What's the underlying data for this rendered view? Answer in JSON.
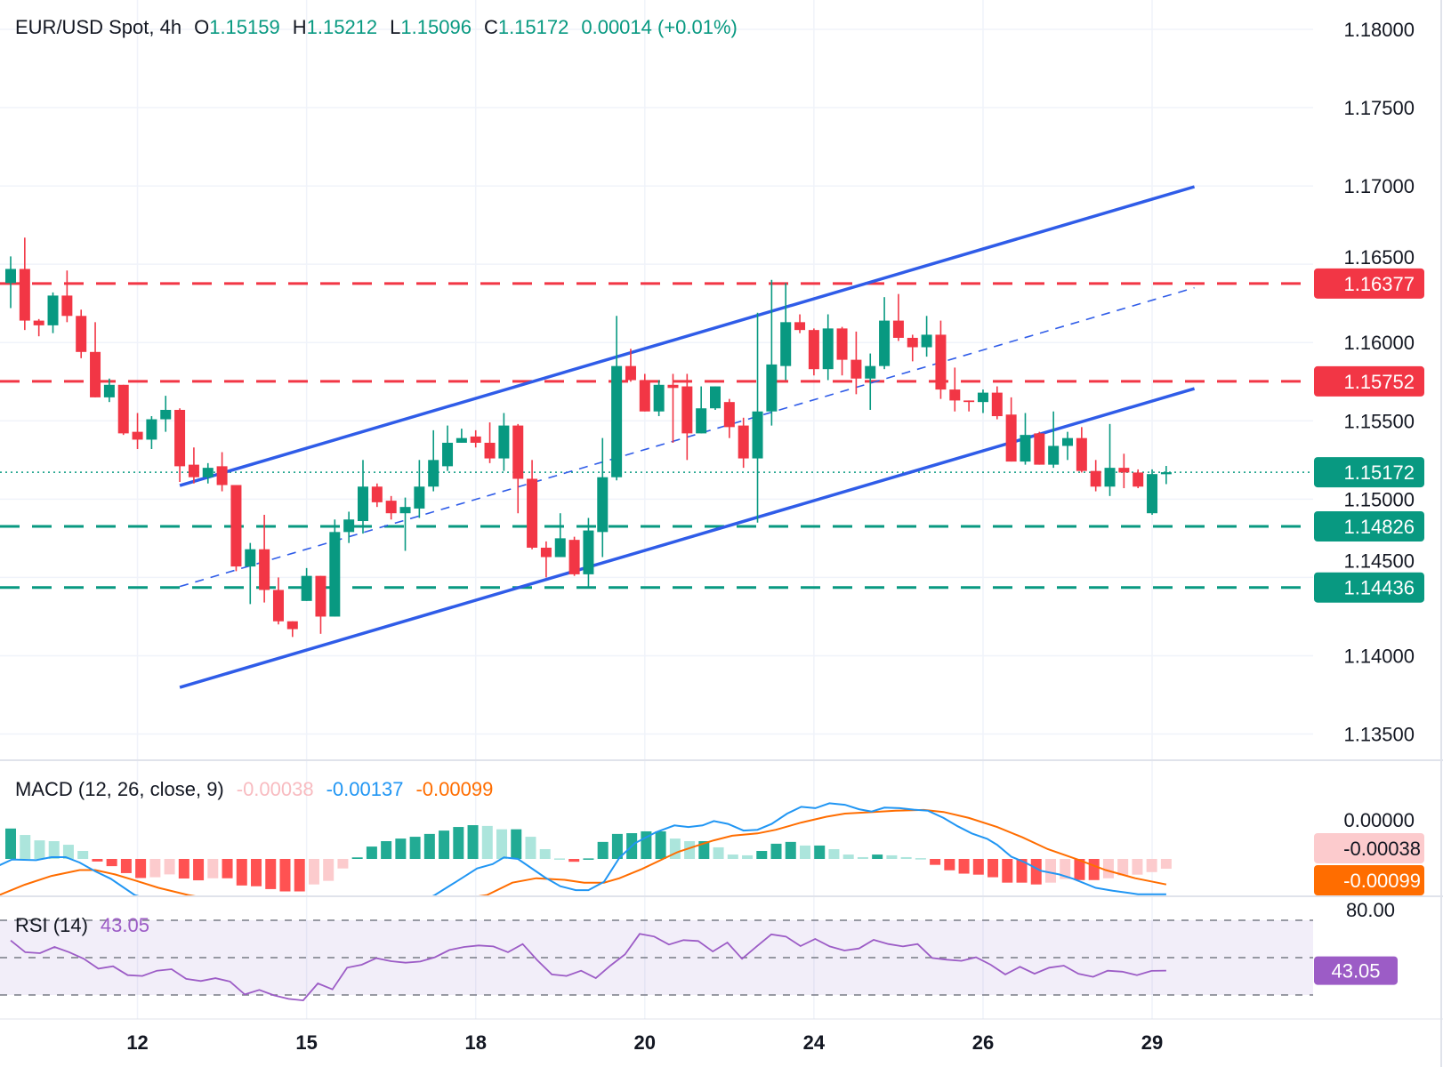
{
  "header": {
    "symbol": "EUR/USD Spot, 4h",
    "open_label": "O",
    "open": "1.15159",
    "high_label": "H",
    "high": "1.15212",
    "low_label": "L",
    "low": "1.15096",
    "close_label": "C",
    "close": "1.15172",
    "change": "0.00014 (+0.01%)"
  },
  "colors": {
    "up": "#089981",
    "down": "#f23645",
    "trendline": "#2f5ce8",
    "macd": "#2196f3",
    "signal": "#ff6d00",
    "hist_up_strong": "#22ab94",
    "hist_up_weak": "#ace5dc",
    "hist_down_strong": "#ff5252",
    "hist_down_weak": "#fccbcd",
    "rsi": "#9c5cc6",
    "rsi_band": "#7e57c2"
  },
  "chart_data": [
    {
      "type": "candlestick",
      "title": "EUR/USD Spot, 4h",
      "ylim": [
        1.1325,
        1.1825
      ],
      "y_ticks": [
        "1.18000",
        "1.17500",
        "1.17000",
        "1.16500",
        "1.16000",
        "1.15500",
        "1.15000",
        "1.14500",
        "1.14000",
        "1.13500"
      ],
      "x_ticks": [
        {
          "label": "12",
          "bar": 9
        },
        {
          "label": "15",
          "bar": 21
        },
        {
          "label": "18",
          "bar": 33
        },
        {
          "label": "20",
          "bar": 45
        },
        {
          "label": "24",
          "bar": 57
        },
        {
          "label": "26",
          "bar": 69
        },
        {
          "label": "29",
          "bar": 81
        }
      ],
      "grid": true,
      "ohlc": [
        [
          1.1638,
          1.1655,
          1.1622,
          1.1647
        ],
        [
          1.1647,
          1.1667,
          1.1608,
          1.1614
        ],
        [
          1.1614,
          1.1615,
          1.1604,
          1.1611
        ],
        [
          1.1611,
          1.1632,
          1.1606,
          1.163
        ],
        [
          1.163,
          1.1646,
          1.1613,
          1.1617
        ],
        [
          1.1617,
          1.1621,
          1.159,
          1.1594
        ],
        [
          1.1594,
          1.1613,
          1.1565,
          1.1565
        ],
        [
          1.1565,
          1.1577,
          1.1562,
          1.1573
        ],
        [
          1.1573,
          1.1573,
          1.1541,
          1.1542
        ],
        [
          1.1543,
          1.1555,
          1.1532,
          1.1538
        ],
        [
          1.1538,
          1.1553,
          1.1532,
          1.1551
        ],
        [
          1.1551,
          1.1566,
          1.1543,
          1.1557
        ],
        [
          1.1557,
          1.1558,
          1.1511,
          1.1521
        ],
        [
          1.1522,
          1.1533,
          1.151,
          1.1514
        ],
        [
          1.1514,
          1.1523,
          1.151,
          1.152
        ],
        [
          1.1521,
          1.153,
          1.1505,
          1.1509
        ],
        [
          1.1509,
          1.1509,
          1.1454,
          1.1457
        ],
        [
          1.1457,
          1.1472,
          1.1433,
          1.1468
        ],
        [
          1.1468,
          1.149,
          1.1434,
          1.1442
        ],
        [
          1.1442,
          1.145,
          1.142,
          1.1422
        ],
        [
          1.1422,
          1.1422,
          1.1412,
          1.1417
        ],
        [
          1.1435,
          1.1456,
          1.1435,
          1.1451
        ],
        [
          1.1451,
          1.1451,
          1.1414,
          1.1425
        ],
        [
          1.1425,
          1.1487,
          1.1425,
          1.1479
        ],
        [
          1.1479,
          1.1492,
          1.1472,
          1.1487
        ],
        [
          1.1486,
          1.1525,
          1.1478,
          1.1508
        ],
        [
          1.1508,
          1.151,
          1.1495,
          1.1498
        ],
        [
          1.1499,
          1.1502,
          1.1487,
          1.1491
        ],
        [
          1.1491,
          1.1501,
          1.1467,
          1.1495
        ],
        [
          1.1494,
          1.1525,
          1.1488,
          1.1508
        ],
        [
          1.1508,
          1.1544,
          1.1505,
          1.1525
        ],
        [
          1.1521,
          1.1547,
          1.1518,
          1.1536
        ],
        [
          1.1536,
          1.1545,
          1.1536,
          1.1539
        ],
        [
          1.154,
          1.1544,
          1.1533,
          1.1536
        ],
        [
          1.1536,
          1.1549,
          1.1523,
          1.1526
        ],
        [
          1.1526,
          1.1555,
          1.1518,
          1.1547
        ],
        [
          1.1547,
          1.1548,
          1.1491,
          1.1513
        ],
        [
          1.1513,
          1.1525,
          1.1468,
          1.1469
        ],
        [
          1.1469,
          1.1473,
          1.145,
          1.1463
        ],
        [
          1.1463,
          1.1491,
          1.1463,
          1.1475
        ],
        [
          1.1474,
          1.1476,
          1.1451,
          1.1452
        ],
        [
          1.1452,
          1.1488,
          1.1443,
          1.148
        ],
        [
          1.1479,
          1.1539,
          1.1463,
          1.1514
        ],
        [
          1.1514,
          1.1617,
          1.1512,
          1.1585
        ],
        [
          1.1585,
          1.1596,
          1.1575,
          1.1576
        ],
        [
          1.1576,
          1.158,
          1.1556,
          1.1556
        ],
        [
          1.1556,
          1.1576,
          1.1553,
          1.1573
        ],
        [
          1.1573,
          1.158,
          1.1536,
          1.1571
        ],
        [
          1.1572,
          1.158,
          1.1525,
          1.1542
        ],
        [
          1.1542,
          1.1572,
          1.1542,
          1.1558
        ],
        [
          1.1558,
          1.1572,
          1.1557,
          1.1572
        ],
        [
          1.1562,
          1.1564,
          1.1539,
          1.1546
        ],
        [
          1.1547,
          1.1552,
          1.152,
          1.1526
        ],
        [
          1.1526,
          1.1619,
          1.1485,
          1.1556
        ],
        [
          1.1556,
          1.164,
          1.1547,
          1.1586
        ],
        [
          1.1585,
          1.1638,
          1.1576,
          1.1613
        ],
        [
          1.1613,
          1.1618,
          1.1606,
          1.1608
        ],
        [
          1.1608,
          1.1609,
          1.1579,
          1.1583
        ],
        [
          1.1583,
          1.1618,
          1.1576,
          1.1609
        ],
        [
          1.1609,
          1.161,
          1.1579,
          1.1589
        ],
        [
          1.1589,
          1.1607,
          1.1567,
          1.1577
        ],
        [
          1.1577,
          1.1593,
          1.1557,
          1.1585
        ],
        [
          1.1585,
          1.1629,
          1.1583,
          1.1614
        ],
        [
          1.1614,
          1.1631,
          1.1601,
          1.1603
        ],
        [
          1.1603,
          1.1605,
          1.1588,
          1.1597
        ],
        [
          1.1597,
          1.1617,
          1.1591,
          1.1605
        ],
        [
          1.1605,
          1.1614,
          1.1564,
          1.157
        ],
        [
          1.157,
          1.1584,
          1.1556,
          1.1563
        ],
        [
          1.1563,
          1.1563,
          1.1556,
          1.1562
        ],
        [
          1.1562,
          1.157,
          1.1555,
          1.1568
        ],
        [
          1.1568,
          1.1572,
          1.1551,
          1.1553
        ],
        [
          1.1554,
          1.1565,
          1.1524,
          1.1524
        ],
        [
          1.1524,
          1.1555,
          1.1522,
          1.1541
        ],
        [
          1.1542,
          1.1543,
          1.1522,
          1.1522
        ],
        [
          1.1522,
          1.1556,
          1.152,
          1.1534
        ],
        [
          1.1534,
          1.1543,
          1.1525,
          1.1539
        ],
        [
          1.1539,
          1.1546,
          1.1517,
          1.1518
        ],
        [
          1.1518,
          1.1525,
          1.1505,
          1.1508
        ],
        [
          1.1508,
          1.1548,
          1.1502,
          1.152
        ],
        [
          1.152,
          1.1529,
          1.1507,
          1.1517
        ],
        [
          1.1517,
          1.1519,
          1.1507,
          1.1508
        ],
        [
          1.1491,
          1.1519,
          1.149,
          1.1516
        ],
        [
          1.15159,
          1.15212,
          1.15096,
          1.15172
        ]
      ],
      "levels": [
        {
          "price": 1.16377,
          "label": "1.16377",
          "color": "#f23645",
          "style": "dashed"
        },
        {
          "price": 1.15752,
          "label": "1.15752",
          "color": "#f23645",
          "style": "dashed"
        },
        {
          "price": 1.15172,
          "label": "1.15172",
          "color": "#089981",
          "style": "dotted"
        },
        {
          "price": 1.14826,
          "label": "1.14826",
          "color": "#089981",
          "style": "dashed"
        },
        {
          "price": 1.14436,
          "label": "1.14436",
          "color": "#089981",
          "style": "dashed"
        }
      ],
      "trendlines": [
        {
          "from": [
            12,
            1.15087
          ],
          "to": [
            84,
            1.16995
          ],
          "style": "solid"
        },
        {
          "from": [
            12,
            1.13798
          ],
          "to": [
            84,
            1.15706
          ],
          "style": "solid"
        },
        {
          "from": [
            12,
            1.14442
          ],
          "to": [
            84,
            1.1635
          ],
          "style": "dashed"
        }
      ]
    },
    {
      "type": "bar+line",
      "title": "MACD (12, 26, close, 9)",
      "values_label": {
        "histogram": "-0.00038",
        "macd": "-0.00137",
        "signal": "-0.00099"
      },
      "axis_labels": {
        "zero": "0.00000",
        "histogram": "-0.00038",
        "signal": "-0.00099"
      },
      "histogram": [
        0.00118,
        0.00093,
        0.00072,
        0.00069,
        0.00055,
        0.00031,
        -0.0001,
        -0.00028,
        -0.00055,
        -0.00074,
        -0.00071,
        -0.0006,
        -0.00076,
        -0.00083,
        -0.00075,
        -0.00075,
        -0.00103,
        -0.00106,
        -0.00117,
        -0.00126,
        -0.00126,
        -0.00099,
        -0.00085,
        -0.00037,
        6e-05,
        0.00048,
        0.00069,
        0.00079,
        0.00086,
        0.00097,
        0.0011,
        0.00124,
        0.00131,
        0.00128,
        0.00115,
        0.00115,
        0.00086,
        0.00038,
        2e-05,
        -0.00011,
        2e-05,
        0.00066,
        0.00097,
        0.001,
        0.00107,
        0.00107,
        0.00079,
        0.00069,
        0.00069,
        0.00045,
        0.00017,
        0.00014,
        0.00031,
        0.00059,
        0.00066,
        0.00052,
        0.00052,
        0.00038,
        0.00017,
        7e-05,
        0.00017,
        0.00014,
        7e-05,
        3e-05,
        -0.00023,
        -0.00044,
        -0.00057,
        -0.00061,
        -0.00071,
        -0.00092,
        -0.00092,
        -0.00099,
        -0.00092,
        -0.00078,
        -0.00082,
        -0.00082,
        -0.00075,
        -0.00064,
        -0.00061,
        -0.00051,
        -0.00038
      ],
      "macd": [
        [
          -0.8,
          -0.00025
        ],
        [
          0.1,
          -2e-05
        ],
        [
          1.8,
          -5e-05
        ],
        [
          2.9,
          7e-05
        ],
        [
          3.9,
          7e-05
        ],
        [
          4.9,
          -0.00014
        ],
        [
          6.0,
          -0.00048
        ],
        [
          7.1,
          -0.00077
        ],
        [
          8.8,
          -0.0014
        ],
        [
          12,
          -0.0019
        ],
        [
          18,
          -0.0024
        ],
        [
          24,
          -0.0022
        ],
        [
          29,
          -0.0017
        ],
        [
          30.1,
          -0.0014
        ],
        [
          31.6,
          -0.00089
        ],
        [
          33.1,
          -0.00037
        ],
        [
          34.2,
          -0.0002
        ],
        [
          35,
          6e-05
        ],
        [
          36,
          0
        ],
        [
          37.9,
          -0.00071
        ],
        [
          39,
          -0.00106
        ],
        [
          40.1,
          -0.00121
        ],
        [
          41,
          -0.00121
        ],
        [
          42.1,
          -0.00089
        ],
        [
          43.2,
          5e-05
        ],
        [
          44.3,
          0.00061
        ],
        [
          45.8,
          0.00104
        ],
        [
          47.1,
          0.0013
        ],
        [
          48.1,
          0.00124
        ],
        [
          49.1,
          0.0013
        ],
        [
          49.9,
          0.00147
        ],
        [
          50.9,
          0.00136
        ],
        [
          52,
          0.0011
        ],
        [
          53,
          0.00113
        ],
        [
          54,
          0.00136
        ],
        [
          55.1,
          0.00176
        ],
        [
          56.1,
          0.00202
        ],
        [
          57.1,
          0.00197
        ],
        [
          58.1,
          0.00216
        ],
        [
          59.2,
          0.0021
        ],
        [
          60.2,
          0.00193
        ],
        [
          61.1,
          0.00184
        ],
        [
          62,
          0.00199
        ],
        [
          63.1,
          0.00197
        ],
        [
          64.1,
          0.00191
        ],
        [
          65.1,
          0.00187
        ],
        [
          66.2,
          0.00159
        ],
        [
          67.2,
          0.00127
        ],
        [
          68.2,
          0.00099
        ],
        [
          69.3,
          0.00078
        ],
        [
          70,
          0.00055
        ],
        [
          71,
          9e-05
        ],
        [
          72,
          -0.00014
        ],
        [
          73.1,
          -0.00046
        ],
        [
          74.4,
          -0.0006
        ],
        [
          75.4,
          -0.00077
        ],
        [
          77,
          -0.00112
        ],
        [
          78.2,
          -0.00123
        ],
        [
          80,
          -0.00137
        ],
        [
          82,
          -0.00137
        ]
      ],
      "signal": [
        [
          -0.8,
          -0.0014
        ],
        [
          1,
          -0.001
        ],
        [
          2.9,
          -0.00066
        ],
        [
          4.9,
          -0.00043
        ],
        [
          6,
          -0.00043
        ],
        [
          7.4,
          -0.0006
        ],
        [
          8.8,
          -0.00083
        ],
        [
          10.5,
          -0.00112
        ],
        [
          12.6,
          -0.0014
        ],
        [
          18,
          -0.0019
        ],
        [
          24,
          -0.0019
        ],
        [
          30,
          -0.0017
        ],
        [
          33.8,
          -0.0014
        ],
        [
          35.6,
          -0.00092
        ],
        [
          37.3,
          -0.00075
        ],
        [
          39.3,
          -0.00081
        ],
        [
          40.7,
          -0.00092
        ],
        [
          42.1,
          -0.00092
        ],
        [
          43.2,
          -0.00075
        ],
        [
          44.8,
          -0.00039
        ],
        [
          46.3,
          0
        ],
        [
          47.3,
          0.00026
        ],
        [
          48.9,
          0.00055
        ],
        [
          49.9,
          0.00072
        ],
        [
          51.2,
          0.0009
        ],
        [
          53,
          0.00099
        ],
        [
          54.3,
          0.00113
        ],
        [
          56.1,
          0.00141
        ],
        [
          57.9,
          0.00164
        ],
        [
          59.2,
          0.00176
        ],
        [
          61.2,
          0.00182
        ],
        [
          62.8,
          0.00187
        ],
        [
          64.8,
          0.0019
        ],
        [
          66.2,
          0.00182
        ],
        [
          68,
          0.00159
        ],
        [
          70,
          0.00124
        ],
        [
          71.8,
          0.00084
        ],
        [
          73.6,
          0.00038
        ],
        [
          75.7,
          -2e-05
        ],
        [
          77.7,
          -0.00043
        ],
        [
          79.8,
          -0.00075
        ],
        [
          82,
          -0.00099
        ]
      ]
    },
    {
      "type": "line",
      "title": "RSI (14)",
      "value_label": "43.05",
      "axis_label": "80.00",
      "bands": [
        70,
        50,
        30
      ],
      "values": [
        59.2,
        52.9,
        52.4,
        55.7,
        52.9,
        49.4,
        44.1,
        45.4,
        40.6,
        40.2,
        43.0,
        43.8,
        38.6,
        37.5,
        39.0,
        37.2,
        30.3,
        32.7,
        29.8,
        27.9,
        27.1,
        36.2,
        33.0,
        44.6,
        46.2,
        49.7,
        48.1,
        47.3,
        47.9,
        50.2,
        54.1,
        55.7,
        56.5,
        56.0,
        52.9,
        57.3,
        48.6,
        41.0,
        40.2,
        43.0,
        39.0,
        45.7,
        51.7,
        62.7,
        61.3,
        57.0,
        59.4,
        58.9,
        53.3,
        58.1,
        49.4,
        56.0,
        62.5,
        61.3,
        56.2,
        60.0,
        56.0,
        53.8,
        54.9,
        59.5,
        57.3,
        56.0,
        57.3,
        49.8,
        48.9,
        48.3,
        50.2,
        46.2,
        41.0,
        45.1,
        41.4,
        44.6,
        45.7,
        41.4,
        39.7,
        43.0,
        42.5,
        40.6,
        42.9,
        43.05
      ]
    }
  ]
}
